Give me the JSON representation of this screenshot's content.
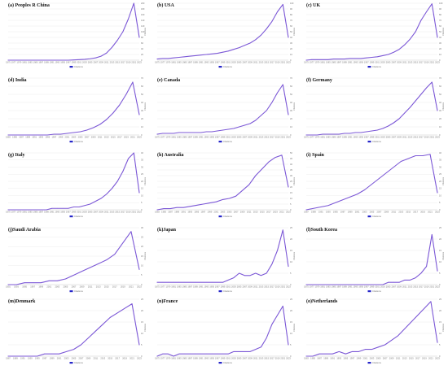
{
  "panel_defaults": {
    "y_axis_label": "Citations",
    "legend_label": "Citations",
    "line_color": "#7b57d6",
    "legend_color": "#2626c9",
    "grid_color": "#e8e8e8"
  },
  "chart_data": [
    {
      "type": "line",
      "title": "(a) Peoples R China",
      "x": [
        1975,
        1977,
        1979,
        1981,
        1983,
        1985,
        1987,
        1989,
        1991,
        1993,
        1995,
        1997,
        1999,
        2001,
        2003,
        2005,
        2007,
        2009,
        2011,
        2013,
        2015,
        2017,
        2019,
        2021,
        2023
      ],
      "values": [
        0,
        0,
        0,
        0,
        0,
        0,
        0,
        0,
        0,
        0,
        0,
        0,
        1,
        2,
        3,
        5,
        8,
        14,
        25,
        45,
        70,
        100,
        145,
        200,
        80
      ],
      "ylim": [
        0,
        200
      ],
      "yticks": [
        0,
        20,
        40,
        60,
        80,
        100,
        120,
        140,
        160,
        180,
        200
      ],
      "series": [
        {
          "name": "Citations"
        }
      ],
      "legend": "bottom-center"
    },
    {
      "type": "line",
      "title": "(b) USA",
      "x": [
        1975,
        1977,
        1979,
        1981,
        1983,
        1985,
        1987,
        1989,
        1991,
        1993,
        1995,
        1997,
        1999,
        2001,
        2003,
        2005,
        2007,
        2009,
        2011,
        2013,
        2015,
        2017,
        2019,
        2021,
        2023
      ],
      "values": [
        2,
        3,
        3,
        4,
        5,
        6,
        7,
        8,
        9,
        10,
        11,
        12,
        14,
        16,
        19,
        22,
        26,
        30,
        36,
        44,
        55,
        68,
        85,
        98,
        40
      ],
      "ylim": [
        0,
        100
      ],
      "yticks": [
        0,
        10,
        20,
        30,
        40,
        50,
        60,
        70,
        80,
        90,
        100
      ],
      "series": [
        {
          "name": "Citations"
        }
      ],
      "legend": "bottom-center"
    },
    {
      "type": "line",
      "title": "(c) UK",
      "x": [
        1975,
        1977,
        1979,
        1981,
        1983,
        1985,
        1987,
        1989,
        1991,
        1993,
        1995,
        1997,
        1999,
        2001,
        2003,
        2005,
        2007,
        2009,
        2011,
        2013,
        2015,
        2017,
        2019,
        2021,
        2023
      ],
      "values": [
        0,
        1,
        1,
        1,
        1,
        2,
        2,
        2,
        3,
        3,
        3,
        4,
        5,
        6,
        8,
        10,
        14,
        19,
        27,
        37,
        50,
        70,
        85,
        99,
        40
      ],
      "ylim": [
        0,
        100
      ],
      "yticks": [
        0,
        10,
        20,
        30,
        40,
        50,
        60,
        70,
        80,
        90,
        100
      ],
      "series": [
        {
          "name": "Citations"
        }
      ],
      "legend": "bottom-center"
    },
    {
      "type": "line",
      "title": "(d) India",
      "x": [
        1983,
        1985,
        1987,
        1989,
        1991,
        1993,
        1995,
        1997,
        1999,
        2001,
        2003,
        2005,
        2007,
        2009,
        2011,
        2013,
        2015,
        2017,
        2019,
        2021,
        2023
      ],
      "values": [
        0,
        0,
        0,
        0,
        0,
        0,
        0,
        1,
        1,
        2,
        3,
        4,
        6,
        9,
        13,
        19,
        27,
        37,
        50,
        65,
        25
      ],
      "ylim": [
        0,
        70
      ],
      "yticks": [
        0,
        10,
        20,
        30,
        40,
        50,
        60,
        70
      ],
      "series": [
        {
          "name": "Citations"
        }
      ],
      "legend": "bottom-center"
    },
    {
      "type": "line",
      "title": "(e) Canada",
      "x": [
        1975,
        1977,
        1979,
        1981,
        1983,
        1985,
        1987,
        1989,
        1991,
        1993,
        1995,
        1997,
        1999,
        2001,
        2003,
        2005,
        2007,
        2009,
        2011,
        2013,
        2015,
        2017,
        2019,
        2021,
        2023
      ],
      "values": [
        1,
        2,
        2,
        2,
        3,
        3,
        3,
        3,
        3,
        4,
        4,
        5,
        6,
        7,
        8,
        10,
        12,
        14,
        18,
        24,
        30,
        40,
        52,
        62,
        25
      ],
      "ylim": [
        0,
        70
      ],
      "yticks": [
        0,
        10,
        20,
        30,
        40,
        50,
        60,
        70
      ],
      "series": [
        {
          "name": "Citations"
        }
      ],
      "legend": "bottom-center"
    },
    {
      "type": "line",
      "title": "(f) Germany",
      "x": [
        1975,
        1977,
        1979,
        1981,
        1983,
        1985,
        1987,
        1989,
        1991,
        1993,
        1995,
        1997,
        1999,
        2001,
        2003,
        2005,
        2007,
        2009,
        2011,
        2013,
        2015,
        2017,
        2019,
        2021,
        2023
      ],
      "values": [
        0,
        0,
        0,
        1,
        1,
        1,
        1,
        2,
        2,
        3,
        3,
        4,
        5,
        6,
        8,
        11,
        15,
        20,
        27,
        34,
        42,
        50,
        58,
        65,
        30
      ],
      "ylim": [
        0,
        70
      ],
      "yticks": [
        0,
        10,
        20,
        30,
        40,
        50,
        60,
        70
      ],
      "series": [
        {
          "name": "Citations"
        }
      ],
      "legend": "bottom-center"
    },
    {
      "type": "line",
      "title": "(g) Italy",
      "x": [
        1975,
        1977,
        1979,
        1981,
        1983,
        1985,
        1987,
        1989,
        1991,
        1993,
        1995,
        1997,
        1999,
        2001,
        2003,
        2005,
        2007,
        2009,
        2011,
        2013,
        2015,
        2017,
        2019,
        2021,
        2023
      ],
      "values": [
        0,
        0,
        0,
        0,
        0,
        0,
        0,
        0,
        1,
        1,
        1,
        1,
        2,
        2,
        3,
        4,
        6,
        8,
        11,
        15,
        20,
        27,
        36,
        40,
        12
      ],
      "ylim": [
        0,
        40
      ],
      "yticks": [
        0,
        5,
        10,
        15,
        20,
        25,
        30,
        35,
        40
      ],
      "series": [
        {
          "name": "Citations"
        }
      ],
      "legend": "bottom-center"
    },
    {
      "type": "line",
      "title": "(h) Australia",
      "x": [
        1983,
        1985,
        1987,
        1989,
        1991,
        1993,
        1995,
        1997,
        1999,
        2001,
        2003,
        2005,
        2007,
        2009,
        2011,
        2013,
        2015,
        2017,
        2019,
        2021,
        2023
      ],
      "values": [
        0,
        1,
        1,
        2,
        2,
        3,
        4,
        5,
        6,
        7,
        9,
        10,
        12,
        17,
        22,
        30,
        36,
        42,
        46,
        48,
        20
      ],
      "ylim": [
        0,
        50
      ],
      "yticks": [
        0,
        5,
        10,
        15,
        20,
        25,
        30,
        35,
        40,
        45,
        50
      ],
      "series": [
        {
          "name": "Citations"
        }
      ],
      "legend": "bottom-center"
    },
    {
      "type": "line",
      "title": "(i) Spain",
      "x": [
        1987,
        1989,
        1991,
        1993,
        1995,
        1997,
        1999,
        2001,
        2003,
        2005,
        2007,
        2009,
        2011,
        2013,
        2015,
        2017,
        2019,
        2021,
        2023
      ],
      "values": [
        0,
        1,
        2,
        3,
        5,
        7,
        9,
        11,
        14,
        18,
        22,
        26,
        30,
        34,
        36,
        38,
        38,
        39,
        12
      ],
      "ylim": [
        0,
        40
      ],
      "yticks": [
        0,
        5,
        10,
        15,
        20,
        25,
        30,
        35,
        40
      ],
      "series": [
        {
          "name": "Citations"
        }
      ],
      "legend": "bottom-center"
    },
    {
      "type": "line",
      "title": "(j)Saudi Arabia",
      "x": [
        1991,
        1993,
        1995,
        1997,
        1999,
        2001,
        2003,
        2005,
        2007,
        2009,
        2011,
        2013,
        2015,
        2017,
        2019,
        2021,
        2023
      ],
      "values": [
        0,
        0,
        1,
        1,
        1,
        2,
        2,
        3,
        5,
        7,
        9,
        11,
        13,
        16,
        22,
        28,
        8
      ],
      "ylim": [
        0,
        30
      ],
      "yticks": [
        0,
        5,
        10,
        15,
        20,
        25,
        30
      ],
      "series": [
        {
          "name": "Citations"
        }
      ],
      "legend": "bottom-center"
    },
    {
      "type": "line",
      "title": "(k)Japan",
      "x": [
        1975,
        1977,
        1979,
        1981,
        1983,
        1985,
        1987,
        1989,
        1991,
        1993,
        1995,
        1997,
        1999,
        2001,
        2003,
        2005,
        2007,
        2009,
        2011,
        2013,
        2015,
        2017,
        2019,
        2021,
        2023
      ],
      "values": [
        1,
        1,
        1,
        1,
        1,
        1,
        1,
        1,
        1,
        1,
        1,
        1,
        1,
        2,
        3,
        5,
        4,
        4,
        5,
        4,
        5,
        9,
        15,
        24,
        8
      ],
      "ylim": [
        0,
        25
      ],
      "yticks": [
        0,
        5,
        10,
        15,
        20,
        25
      ],
      "series": [
        {
          "name": "Citations"
        }
      ],
      "legend": "bottom-center"
    },
    {
      "type": "line",
      "title": "(l)South Korea",
      "x": [
        1975,
        1977,
        1979,
        1981,
        1983,
        1985,
        1987,
        1989,
        1991,
        1993,
        1995,
        1997,
        1999,
        2001,
        2003,
        2005,
        2007,
        2009,
        2011,
        2013,
        2015,
        2017,
        2019,
        2021,
        2023
      ],
      "values": [
        0,
        0,
        0,
        0,
        0,
        0,
        0,
        0,
        0,
        0,
        0,
        0,
        0,
        0,
        0,
        1,
        1,
        1,
        2,
        2,
        3,
        5,
        8,
        22,
        6
      ],
      "ylim": [
        0,
        25
      ],
      "yticks": [
        0,
        5,
        10,
        15,
        20,
        25
      ],
      "series": [
        {
          "name": "Citations"
        }
      ],
      "legend": "bottom-center"
    },
    {
      "type": "line",
      "title": "(m)Denmark",
      "x": [
        1987,
        1989,
        1991,
        1993,
        1995,
        1997,
        1999,
        2001,
        2003,
        2005,
        2007,
        2009,
        2011,
        2013,
        2015,
        2017,
        2019,
        2021,
        2023
      ],
      "values": [
        0,
        0,
        0,
        0,
        0,
        1,
        1,
        1,
        2,
        3,
        5,
        8,
        11,
        14,
        17,
        19,
        21,
        23,
        5
      ],
      "ylim": [
        0,
        25
      ],
      "yticks": [
        0,
        5,
        10,
        15,
        20,
        25
      ],
      "series": [
        {
          "name": "Citations"
        }
      ],
      "legend": "bottom-center"
    },
    {
      "type": "line",
      "title": "(n)France",
      "x": [
        1975,
        1977,
        1979,
        1981,
        1983,
        1985,
        1987,
        1989,
        1991,
        1993,
        1995,
        1997,
        1999,
        2001,
        2003,
        2005,
        2007,
        2009,
        2011,
        2013,
        2015,
        2017,
        2019,
        2021,
        2023
      ],
      "values": [
        0,
        1,
        1,
        0,
        1,
        1,
        1,
        1,
        1,
        1,
        1,
        1,
        1,
        1,
        2,
        2,
        2,
        2,
        3,
        4,
        8,
        14,
        18,
        22,
        5
      ],
      "ylim": [
        0,
        25
      ],
      "yticks": [
        0,
        5,
        10,
        15,
        20,
        25
      ],
      "series": [
        {
          "name": "Citations"
        }
      ],
      "legend": "bottom-center"
    },
    {
      "type": "line",
      "title": "(o)Netherlands",
      "x": [
        1983,
        1985,
        1987,
        1989,
        1991,
        1993,
        1995,
        1997,
        1999,
        2001,
        2003,
        2005,
        2007,
        2009,
        2011,
        2013,
        2015,
        2017,
        2019,
        2021,
        2023
      ],
      "values": [
        0,
        0,
        1,
        1,
        1,
        2,
        1,
        2,
        2,
        3,
        3,
        4,
        5,
        7,
        9,
        12,
        15,
        18,
        21,
        24,
        6
      ],
      "ylim": [
        0,
        25
      ],
      "yticks": [
        0,
        5,
        10,
        15,
        20,
        25
      ],
      "series": [
        {
          "name": "Citations"
        }
      ],
      "legend": "bottom-center"
    }
  ]
}
